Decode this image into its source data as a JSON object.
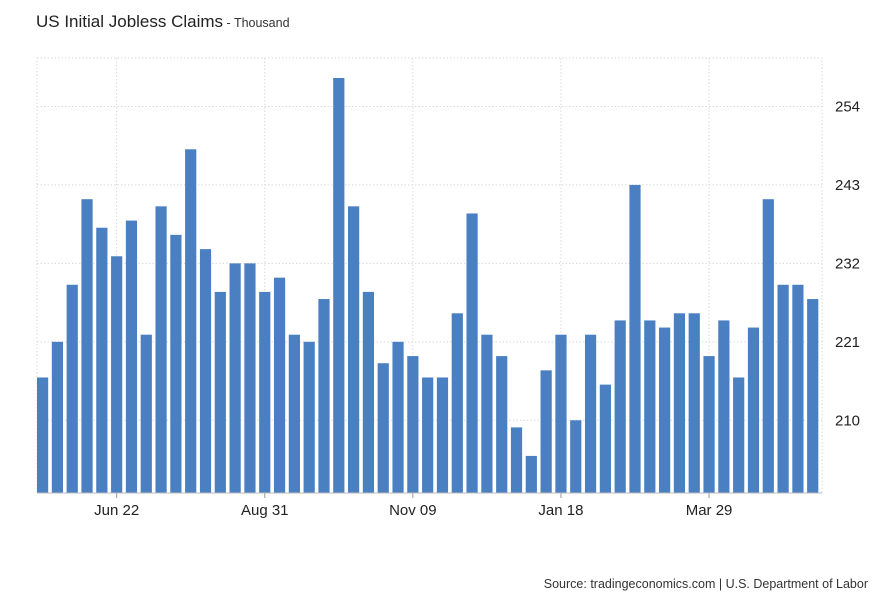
{
  "header": {
    "title": "US Initial Jobless Claims",
    "subtitle": " - Thousand"
  },
  "footer": {
    "source": "Source: tradingeconomics.com | U.S. Department of Labor"
  },
  "colors": {
    "bar": "#4a80c1",
    "grid": "#d9d9d9",
    "axis_text": "#222222"
  },
  "chart_data": {
    "type": "bar",
    "title": "US Initial Jobless Claims",
    "subtitle": "Thousand",
    "xlabel": "",
    "ylabel": "",
    "x_tick_labels": [
      "Jun 22",
      "Aug 31",
      "Nov 09",
      "Jan 18",
      "Mar 29"
    ],
    "x_tick_bar_index": [
      5,
      15,
      25,
      35,
      45
    ],
    "y_ticks": [
      210,
      221,
      232,
      243,
      254
    ],
    "y_axis_position": "right",
    "ylim": [
      199.8,
      260.8
    ],
    "grid": true,
    "values": [
      216,
      221,
      229,
      241,
      237,
      233,
      238,
      222,
      240,
      236,
      248,
      234,
      228,
      232,
      232,
      228,
      230,
      222,
      221,
      227,
      258,
      240,
      228,
      218,
      221,
      219,
      216,
      216,
      225,
      239,
      222,
      219,
      209,
      205,
      217,
      222,
      210,
      222,
      215,
      224,
      243,
      224,
      223,
      225,
      225,
      219,
      224,
      216,
      223,
      241,
      229,
      229,
      227
    ]
  }
}
